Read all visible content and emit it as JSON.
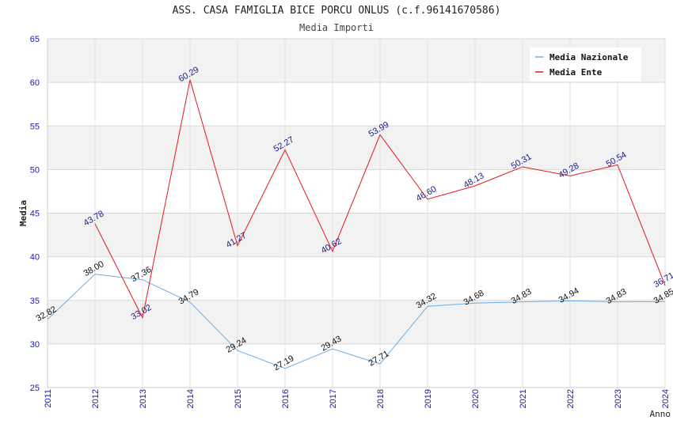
{
  "chart_data": {
    "type": "line",
    "title": "ASS. CASA FAMIGLIA BICE PORCU ONLUS (c.f.96141670586)",
    "subtitle": "Media Importi",
    "ylabel": "Media",
    "xlabel": "Anno",
    "ylim": [
      25,
      65
    ],
    "yticks": [
      25,
      30,
      35,
      40,
      45,
      50,
      55,
      60,
      65
    ],
    "x": [
      "2011",
      "2012",
      "2013",
      "2014",
      "2015",
      "2016",
      "2017",
      "2018",
      "2019",
      "2020",
      "2021",
      "2022",
      "2023",
      "2024"
    ],
    "grid": true,
    "legend_position": "top-right",
    "series": [
      {
        "name": "Media Nazionale",
        "color": "#6aaee8",
        "values": [
          32.82,
          38.0,
          37.36,
          34.79,
          29.24,
          27.19,
          29.43,
          27.71,
          34.32,
          34.68,
          34.83,
          34.94,
          34.83,
          34.85
        ],
        "labels": [
          "32.82",
          "38.00",
          "37.36",
          "34.79",
          "29.24",
          "27.19",
          "29.43",
          "27.71",
          "34.32",
          "34.68",
          "34.83",
          "34.94",
          "34.83",
          "34.85"
        ]
      },
      {
        "name": "Media Ente",
        "color": "#e8141e",
        "values": [
          null,
          43.78,
          33.02,
          60.29,
          41.27,
          52.27,
          40.62,
          53.99,
          46.6,
          48.13,
          50.31,
          49.28,
          50.54,
          36.71
        ],
        "labels": [
          "",
          "43.78",
          "33.02",
          "60.29",
          "41.27",
          "52.27",
          "40.62",
          "53.99",
          "46.60",
          "48.13",
          "50.31",
          "49.28",
          "50.54",
          "36.71"
        ]
      }
    ]
  }
}
